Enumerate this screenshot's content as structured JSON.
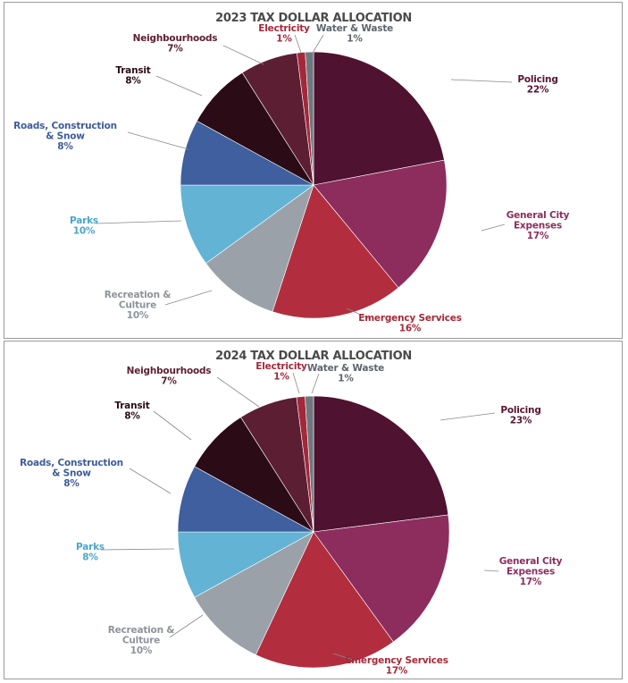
{
  "chart_data": [
    {
      "type": "pie",
      "title": "2023 TAX DOLLAR ALLOCATION",
      "slices": [
        {
          "label": "Policing",
          "value": 22,
          "pct": "22%",
          "color": "#4f1230",
          "text_color": "#5a1433"
        },
        {
          "label": "General City Expenses",
          "value": 17,
          "pct": "17%",
          "color": "#8c2d5e",
          "text_color": "#8c2d5e"
        },
        {
          "label": "Emergency Services",
          "value": 16,
          "pct": "16%",
          "color": "#b22e3e",
          "text_color": "#a52a3a"
        },
        {
          "label": "Recreation & Culture",
          "value": 10,
          "pct": "10%",
          "color": "#9aa1a9",
          "text_color": "#8e949b"
        },
        {
          "label": "Parks",
          "value": 10,
          "pct": "10%",
          "color": "#63b3d4",
          "text_color": "#4aa6cc"
        },
        {
          "label": "Roads, Construction & Snow",
          "value": 8,
          "pct": "8%",
          "color": "#3f5f9e",
          "text_color": "#3e5c9a"
        },
        {
          "label": "Transit",
          "value": 8,
          "pct": "8%",
          "color": "#2b0c16",
          "text_color": "#2b0c16"
        },
        {
          "label": "Neighbourhoods",
          "value": 7,
          "pct": "7%",
          "color": "#5c1e33",
          "text_color": "#5c1e33"
        },
        {
          "label": "Electricity",
          "value": 1,
          "pct": "1%",
          "color": "#a3283a",
          "text_color": "#a3283a"
        },
        {
          "label": "Water & Waste",
          "value": 1,
          "pct": "1%",
          "color": "#6f767e",
          "text_color": "#5e656d"
        }
      ]
    },
    {
      "type": "pie",
      "title": "2024 TAX DOLLAR ALLOCATION",
      "slices": [
        {
          "label": "Policing",
          "value": 23,
          "pct": "23%",
          "color": "#4f1230",
          "text_color": "#5a1433"
        },
        {
          "label": "General City Expenses",
          "value": 17,
          "pct": "17%",
          "color": "#8c2d5e",
          "text_color": "#8c2d5e"
        },
        {
          "label": "Emergency Services",
          "value": 17,
          "pct": "17%",
          "color": "#b22e3e",
          "text_color": "#a52a3a"
        },
        {
          "label": "Recreation & Culture",
          "value": 10,
          "pct": "10%",
          "color": "#9aa1a9",
          "text_color": "#8e949b"
        },
        {
          "label": "Parks",
          "value": 8,
          "pct": "8%",
          "color": "#63b3d4",
          "text_color": "#4aa6cc"
        },
        {
          "label": "Roads, Construction & Snow",
          "value": 8,
          "pct": "8%",
          "color": "#3f5f9e",
          "text_color": "#3e5c9a"
        },
        {
          "label": "Transit",
          "value": 8,
          "pct": "8%",
          "color": "#2b0c16",
          "text_color": "#2b0c16"
        },
        {
          "label": "Neighbourhoods",
          "value": 7,
          "pct": "7%",
          "color": "#5c1e33",
          "text_color": "#5c1e33"
        },
        {
          "label": "Electricity",
          "value": 1,
          "pct": "1%",
          "color": "#a3283a",
          "text_color": "#a3283a"
        },
        {
          "label": "Water & Waste",
          "value": 1,
          "pct": "1%",
          "color": "#6f767e",
          "text_color": "#5e656d"
        }
      ]
    }
  ]
}
